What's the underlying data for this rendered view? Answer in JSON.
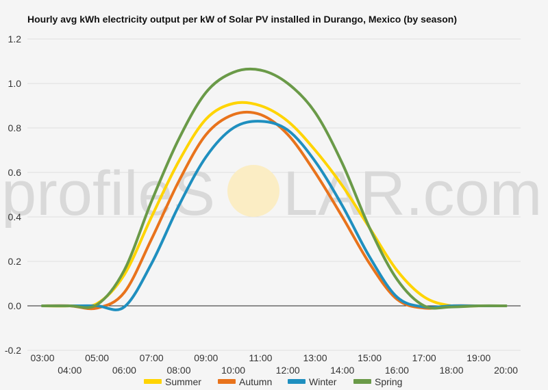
{
  "watermark": {
    "left": "profileS",
    "right": "LAR.com"
  },
  "chart_data": {
    "type": "line",
    "title": "Hourly avg kWh electricity output per kW of Solar PV installed in Durango, Mexico (by season)",
    "xlabel": "",
    "ylabel": "",
    "ylim": [
      -0.2,
      1.2
    ],
    "yticks": [
      "-0.2",
      "0.0",
      "0.2",
      "0.4",
      "0.6",
      "0.8",
      "1.0",
      "1.2"
    ],
    "categories": [
      "03:00",
      "04:00",
      "05:00",
      "06:00",
      "07:00",
      "08:00",
      "09:00",
      "10:00",
      "11:00",
      "12:00",
      "13:00",
      "14:00",
      "15:00",
      "16:00",
      "17:00",
      "18:00",
      "19:00",
      "20:00"
    ],
    "grid": true,
    "legend_position": "bottom",
    "series": [
      {
        "name": "Summer",
        "color": "#FFD400",
        "values": [
          0,
          0,
          0.01,
          0.14,
          0.4,
          0.65,
          0.84,
          0.91,
          0.9,
          0.83,
          0.7,
          0.54,
          0.35,
          0.16,
          0.04,
          0.0,
          0,
          0
        ]
      },
      {
        "name": "Autumn",
        "color": "#E8731C",
        "values": [
          0,
          0,
          -0.01,
          0.06,
          0.3,
          0.56,
          0.77,
          0.86,
          0.86,
          0.77,
          0.6,
          0.4,
          0.19,
          0.03,
          -0.01,
          0,
          0,
          0
        ]
      },
      {
        "name": "Winter",
        "color": "#1F8FBF",
        "values": [
          0,
          0,
          0,
          -0.005,
          0.19,
          0.45,
          0.67,
          0.8,
          0.83,
          0.79,
          0.65,
          0.45,
          0.22,
          0.04,
          -0.005,
          0,
          0,
          0
        ]
      },
      {
        "name": "Spring",
        "color": "#6A9A48",
        "values": [
          0,
          0,
          0.005,
          0.16,
          0.47,
          0.75,
          0.96,
          1.05,
          1.06,
          1.0,
          0.87,
          0.64,
          0.35,
          0.12,
          0.0,
          -0.005,
          0,
          0
        ]
      }
    ]
  }
}
